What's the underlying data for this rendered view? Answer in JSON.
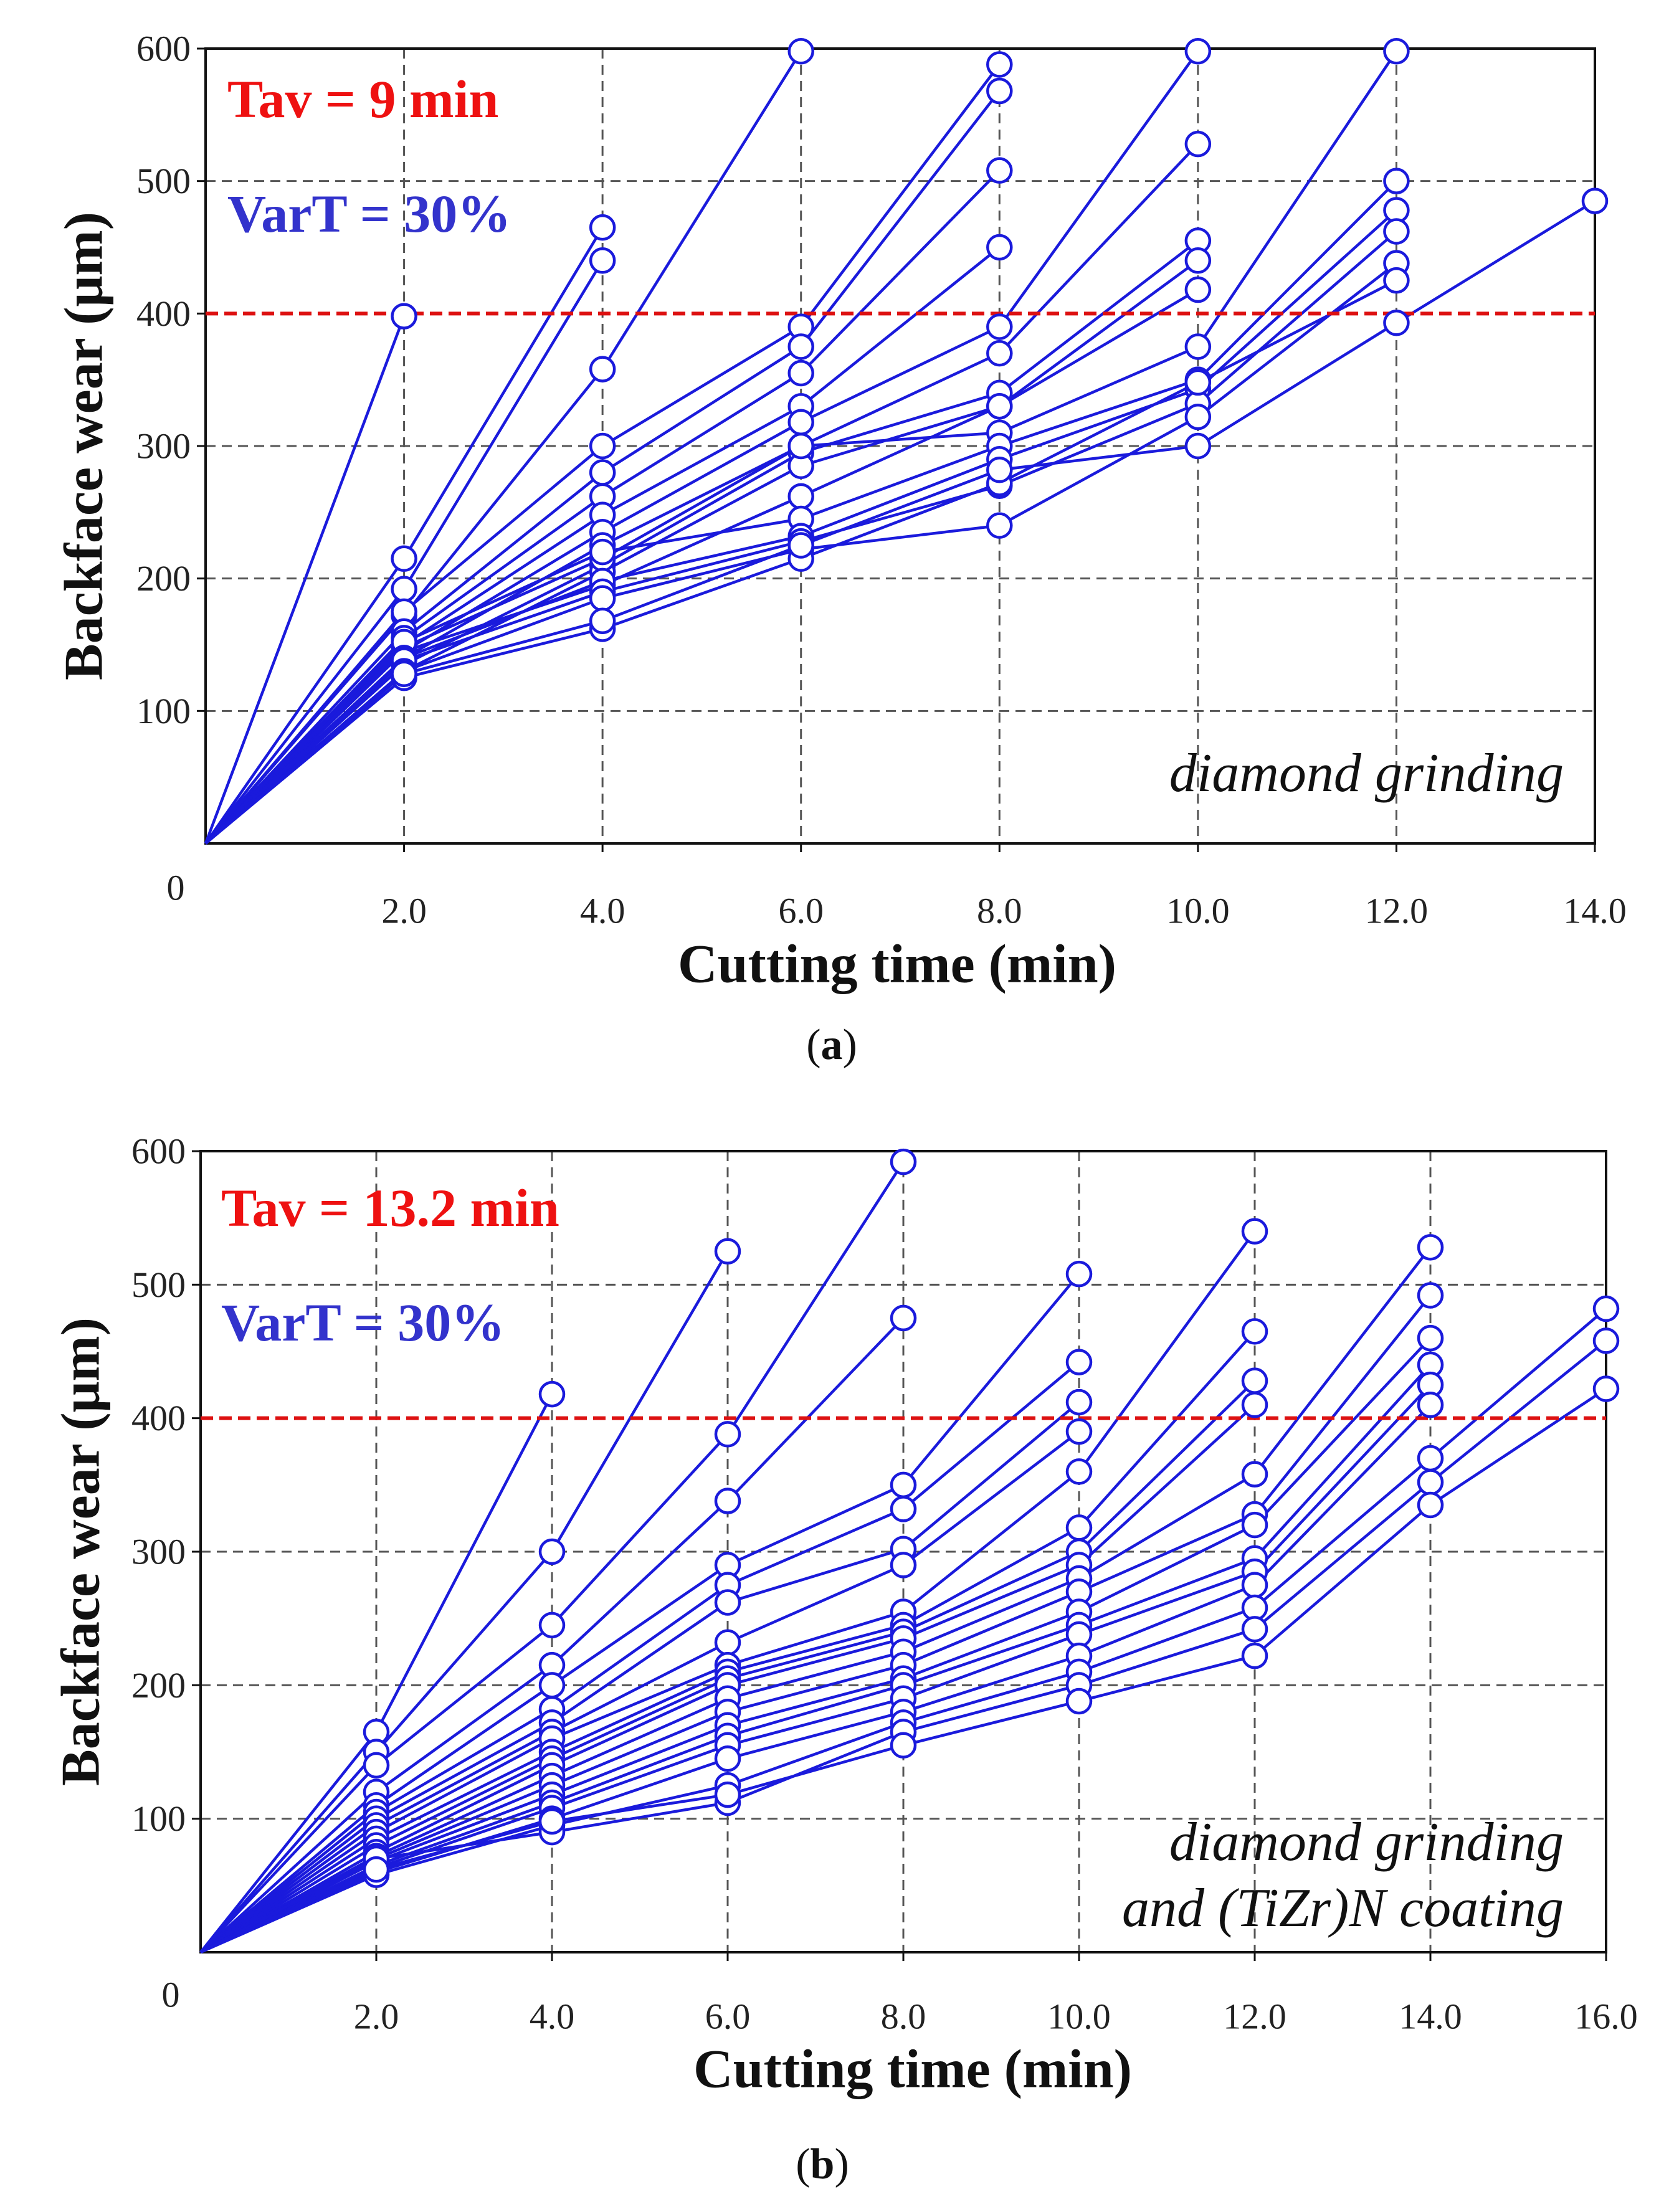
{
  "colors": {
    "series": "#1a1adc",
    "threshold": "#dd1111",
    "tav": "#ee1111",
    "vart": "#3333cc",
    "grid": "#555555"
  },
  "chart_data": [
    {
      "type": "line",
      "panel_label": "a",
      "xlabel": "Cutting time (min)",
      "ylabel": "Backface wear (μm)",
      "xlim": [
        0,
        14
      ],
      "ylim": [
        0,
        600
      ],
      "x_ticks": [
        2,
        4,
        6,
        8,
        10,
        12,
        14
      ],
      "x_tick_labels": [
        "2.0",
        "4.0",
        "6.0",
        "8.0",
        "10.0",
        "12.0",
        "14.0"
      ],
      "y_ticks": [
        100,
        200,
        300,
        400,
        500,
        600
      ],
      "y_tick_labels": [
        "100",
        "200",
        "300",
        "400",
        "500",
        "600"
      ],
      "origin_label": "0",
      "grid": true,
      "threshold": 400,
      "annotation_tav": "Tav = 9 min",
      "annotation_vart": "VarT = 30%",
      "method_lines": [
        "diamond grinding"
      ],
      "series": [
        {
          "x": [
            0,
            2
          ],
          "y": [
            0,
            398
          ]
        },
        {
          "x": [
            0,
            2,
            4
          ],
          "y": [
            0,
            215,
            465
          ]
        },
        {
          "x": [
            0,
            2,
            4
          ],
          "y": [
            0,
            192,
            440
          ]
        },
        {
          "x": [
            0,
            2,
            4,
            6
          ],
          "y": [
            0,
            172,
            358,
            598
          ]
        },
        {
          "x": [
            0,
            2,
            4,
            6,
            8
          ],
          "y": [
            0,
            175,
            300,
            390,
            588
          ]
        },
        {
          "x": [
            0,
            2,
            4,
            6,
            8
          ],
          "y": [
            0,
            160,
            280,
            375,
            568
          ]
        },
        {
          "x": [
            0,
            2,
            4,
            6,
            8
          ],
          "y": [
            0,
            155,
            262,
            355,
            508
          ]
        },
        {
          "x": [
            0,
            2,
            4,
            6,
            8
          ],
          "y": [
            0,
            150,
            248,
            330,
            450
          ]
        },
        {
          "x": [
            0,
            2,
            4,
            6,
            8,
            10
          ],
          "y": [
            0,
            145,
            235,
            318,
            390,
            598
          ]
        },
        {
          "x": [
            0,
            2,
            4,
            6,
            8,
            10
          ],
          "y": [
            0,
            140,
            225,
            300,
            370,
            528
          ]
        },
        {
          "x": [
            0,
            2,
            4,
            6,
            8,
            10
          ],
          "y": [
            0,
            135,
            210,
            295,
            340,
            455
          ]
        },
        {
          "x": [
            0,
            2,
            4,
            6,
            8,
            10
          ],
          "y": [
            0,
            130,
            205,
            285,
            330,
            440
          ]
        },
        {
          "x": [
            0,
            2,
            4,
            6,
            8,
            10
          ],
          "y": [
            0,
            145,
            195,
            262,
            330,
            418
          ]
        },
        {
          "x": [
            0,
            2,
            4,
            6,
            8,
            10,
            12
          ],
          "y": [
            0,
            148,
            215,
            300,
            310,
            375,
            598
          ]
        },
        {
          "x": [
            0,
            2,
            4,
            6,
            8,
            10,
            12
          ],
          "y": [
            0,
            152,
            220,
            245,
            300,
            350,
            500
          ]
        },
        {
          "x": [
            0,
            2,
            4,
            6,
            8,
            10,
            12
          ],
          "y": [
            0,
            140,
            198,
            232,
            290,
            343,
            478
          ]
        },
        {
          "x": [
            0,
            2,
            4,
            6,
            8,
            10,
            12
          ],
          "y": [
            0,
            138,
            190,
            228,
            270,
            332,
            462
          ]
        },
        {
          "x": [
            0,
            2,
            4,
            6,
            8,
            10,
            12
          ],
          "y": [
            0,
            130,
            185,
            222,
            240,
            322,
            438
          ]
        },
        {
          "x": [
            0,
            2,
            4,
            6,
            8,
            10,
            12
          ],
          "y": [
            0,
            125,
            162,
            215,
            272,
            348,
            425
          ]
        },
        {
          "x": [
            0,
            2,
            4,
            6,
            8,
            10,
            12,
            14
          ],
          "y": [
            0,
            128,
            168,
            225,
            282,
            300,
            393,
            485
          ]
        }
      ]
    },
    {
      "type": "line",
      "panel_label": "b",
      "xlabel": "Cutting time (min)",
      "ylabel": "Backface wear (μm)",
      "xlim": [
        0,
        16
      ],
      "ylim": [
        0,
        600
      ],
      "x_ticks": [
        2,
        4,
        6,
        8,
        10,
        12,
        14,
        16
      ],
      "x_tick_labels": [
        "2.0",
        "4.0",
        "6.0",
        "8.0",
        "10.0",
        "12.0",
        "14.0",
        "16.0"
      ],
      "y_ticks": [
        100,
        200,
        300,
        400,
        500,
        600
      ],
      "y_tick_labels": [
        "100",
        "200",
        "300",
        "400",
        "500",
        "600"
      ],
      "origin_label": "0",
      "grid": true,
      "threshold": 400,
      "annotation_tav": "Tav = 13.2 min",
      "annotation_vart": "VarT = 30%",
      "method_lines": [
        "diamond grinding",
        "and (TiZr)N coating"
      ],
      "series": [
        {
          "x": [
            0,
            2,
            4
          ],
          "y": [
            0,
            165,
            418
          ]
        },
        {
          "x": [
            0,
            2,
            4,
            6
          ],
          "y": [
            0,
            150,
            300,
            525
          ]
        },
        {
          "x": [
            0,
            2,
            4,
            6,
            8
          ],
          "y": [
            0,
            140,
            245,
            388,
            592
          ]
        },
        {
          "x": [
            0,
            2,
            4,
            6,
            8
          ],
          "y": [
            0,
            120,
            215,
            338,
            475
          ]
        },
        {
          "x": [
            0,
            2,
            4,
            6,
            8,
            10
          ],
          "y": [
            0,
            110,
            200,
            290,
            350,
            508
          ]
        },
        {
          "x": [
            0,
            2,
            4,
            6,
            8,
            10
          ],
          "y": [
            0,
            105,
            182,
            275,
            332,
            442
          ]
        },
        {
          "x": [
            0,
            2,
            4,
            6,
            8,
            10
          ],
          "y": [
            0,
            100,
            172,
            262,
            302,
            412
          ]
        },
        {
          "x": [
            0,
            2,
            4,
            6,
            8,
            10
          ],
          "y": [
            0,
            95,
            165,
            232,
            290,
            390
          ]
        },
        {
          "x": [
            0,
            2,
            4,
            6,
            8,
            10,
            12
          ],
          "y": [
            0,
            90,
            160,
            215,
            255,
            360,
            540
          ]
        },
        {
          "x": [
            0,
            2,
            4,
            6,
            8,
            10,
            12
          ],
          "y": [
            0,
            85,
            150,
            210,
            245,
            318,
            465
          ]
        },
        {
          "x": [
            0,
            2,
            4,
            6,
            8,
            10,
            12
          ],
          "y": [
            0,
            80,
            145,
            205,
            240,
            300,
            428
          ]
        },
        {
          "x": [
            0,
            2,
            4,
            6,
            8,
            10,
            12
          ],
          "y": [
            0,
            75,
            140,
            200,
            235,
            290,
            410
          ]
        },
        {
          "x": [
            0,
            2,
            4,
            6,
            8,
            10,
            12,
            14
          ],
          "y": [
            0,
            72,
            132,
            190,
            225,
            280,
            358,
            528
          ]
        },
        {
          "x": [
            0,
            2,
            4,
            6,
            8,
            10,
            12,
            14
          ],
          "y": [
            0,
            70,
            125,
            180,
            215,
            270,
            328,
            492
          ]
        },
        {
          "x": [
            0,
            2,
            4,
            6,
            8,
            10,
            12,
            14
          ],
          "y": [
            0,
            68,
            118,
            170,
            205,
            255,
            320,
            460
          ]
        },
        {
          "x": [
            0,
            2,
            4,
            6,
            8,
            10,
            12,
            14
          ],
          "y": [
            0,
            65,
            112,
            162,
            200,
            245,
            295,
            440
          ]
        },
        {
          "x": [
            0,
            2,
            4,
            6,
            8,
            10,
            12,
            14
          ],
          "y": [
            0,
            63,
            108,
            155,
            190,
            238,
            285,
            425
          ]
        },
        {
          "x": [
            0,
            2,
            4,
            6,
            8,
            10,
            12,
            14
          ],
          "y": [
            0,
            60,
            100,
            145,
            180,
            222,
            275,
            410
          ]
        },
        {
          "x": [
            0,
            2,
            4,
            6,
            8,
            10,
            12,
            14,
            16
          ],
          "y": [
            0,
            58,
            95,
            125,
            172,
            210,
            258,
            370,
            482
          ]
        },
        {
          "x": [
            0,
            2,
            4,
            6,
            8,
            10,
            12,
            14,
            16
          ],
          "y": [
            0,
            70,
            90,
            112,
            165,
            200,
            242,
            352,
            458
          ]
        },
        {
          "x": [
            0,
            2,
            4,
            6,
            8,
            10,
            12,
            14,
            16
          ],
          "y": [
            0,
            62,
            98,
            118,
            155,
            188,
            222,
            335,
            422
          ]
        }
      ]
    }
  ]
}
